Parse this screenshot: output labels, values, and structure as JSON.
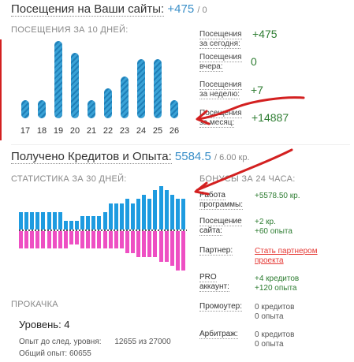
{
  "visits": {
    "title": "Посещения на Ваши сайты:",
    "value": "+475",
    "sub": "/ 0",
    "caption": "ПОСЕЩЕНИЯ ЗА 10 ДНЕЙ:"
  },
  "chart_data": [
    {
      "type": "bar",
      "categories": [
        "17",
        "18",
        "19",
        "20",
        "21",
        "22",
        "23",
        "24",
        "25",
        "26"
      ],
      "values": [
        3,
        3,
        13,
        11,
        3,
        5,
        7,
        10,
        10,
        3
      ],
      "title": "ПОСЕЩЕНИЯ ЗА 10 ДНЕЙ:"
    },
    {
      "type": "bar",
      "title": "СТАТИСТИКА ЗА 30 ДНЕЙ:",
      "series": [
        {
          "values": [
            4,
            4,
            4,
            4,
            4,
            4,
            4,
            4,
            2,
            2,
            2,
            3,
            3,
            3,
            3,
            4,
            6,
            6,
            6,
            7,
            6,
            7,
            8,
            7,
            9,
            10,
            9,
            8,
            7,
            7
          ]
        },
        {
          "values": [
            -4,
            -4,
            -4,
            -4,
            -4,
            -4,
            -4,
            -4,
            -4,
            -3,
            -3,
            -4,
            -4,
            -4,
            -4,
            -4,
            -4,
            -4,
            -4,
            -5,
            -5,
            -6,
            -6,
            -6,
            -6,
            -7,
            -7,
            -8,
            -9,
            -9
          ]
        }
      ]
    }
  ],
  "stats": {
    "items": [
      {
        "label": "Посещения за сегодня:",
        "value": "+475"
      },
      {
        "label": "Посещения вчера:",
        "value": "0"
      },
      {
        "label": "Посещения за неделю:",
        "value": "+7"
      },
      {
        "label": "Посещения за месяц:",
        "value": "+14887"
      }
    ]
  },
  "credits": {
    "title": "Получено Кредитов и Опыта:",
    "value": "5584.5",
    "sub": "/ 6.00 кр.",
    "caption30": "СТАТИСТИКА ЗА 30 ДНЕЙ:",
    "caption24": "БОНУСЫ ЗА 24 ЧАСА:"
  },
  "bonuses": {
    "rows": [
      {
        "label1": "Работа",
        "label2": "программы:",
        "value1": "+5578.50 кр.",
        "value2": ""
      },
      {
        "label1": "Посещение",
        "label2": "сайта:",
        "value1": "+2 кр.",
        "value2": "+60 опыта"
      },
      {
        "label1": "Партнер:",
        "label2": "",
        "link1": "Стать партнером",
        "link2": "проекта"
      },
      {
        "label1": "PRO",
        "label2": "аккаунт:",
        "value1": "+4 кредитов",
        "value2": "+120 опыта"
      },
      {
        "label1": "Промоутер:",
        "label2": "",
        "value1": "0 кредитов",
        "value2": "0 опыта"
      },
      {
        "label1": "Арбитраж:",
        "label2": "",
        "value1": "0 кредитов",
        "value2": "0 опыта"
      }
    ]
  },
  "level": {
    "caption": "ПРОКАЧКА",
    "level_text": "Уровень: 4",
    "next_label": "Опыт до след. уровня:",
    "next_value": "12655 из 27000",
    "total_label": "Общий опыт:",
    "total_value": "60655"
  },
  "colors": {
    "accent": "#3a8fc8",
    "green": "#2e7d32",
    "bar_blue": "#1e9be0",
    "bar_pink": "#ee4fc3",
    "annotation_red": "#d32020"
  }
}
